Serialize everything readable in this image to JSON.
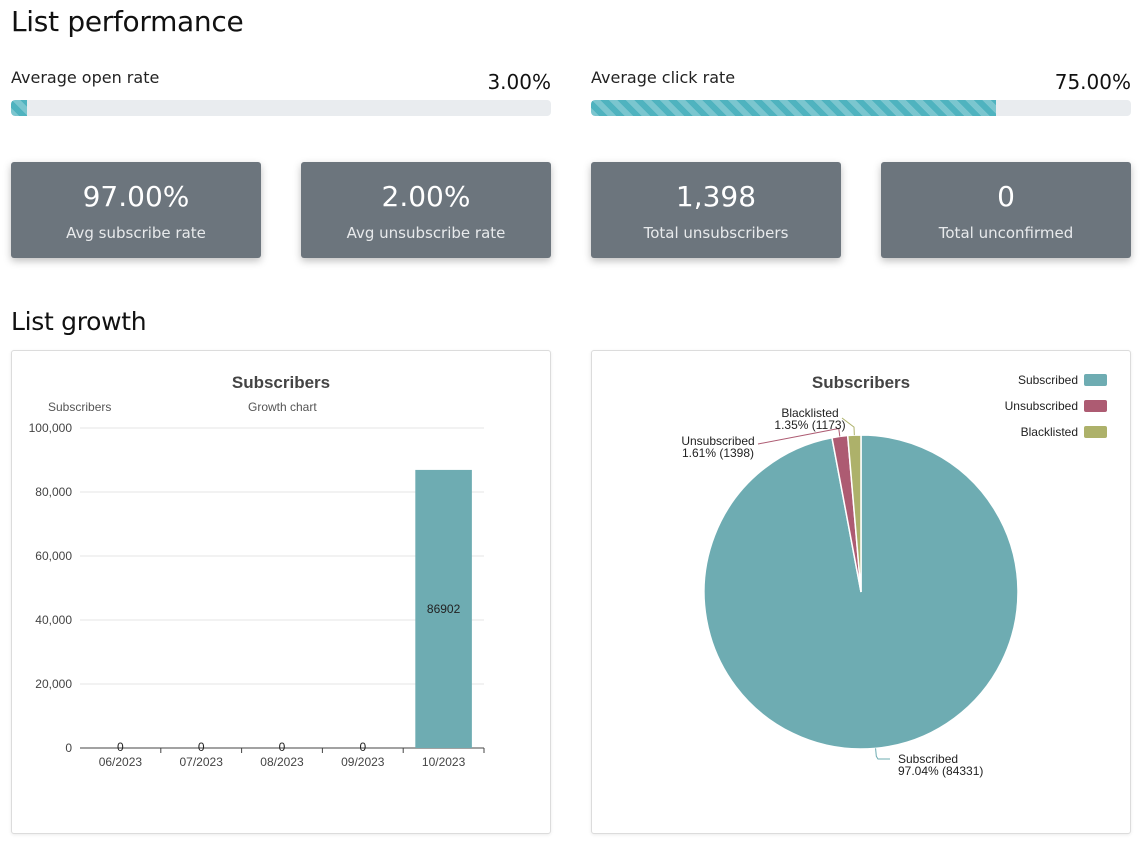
{
  "page": {
    "title": "List performance",
    "growth_title": "List growth"
  },
  "rates": {
    "open": {
      "label": "Average open rate",
      "value": "3.00%",
      "fraction": 0.03
    },
    "click": {
      "label": "Average click rate",
      "value": "75.00%",
      "fraction": 0.75
    }
  },
  "stats": [
    {
      "value": "97.00%",
      "label": "Avg subscribe rate"
    },
    {
      "value": "2.00%",
      "label": "Avg unsubscribe rate"
    },
    {
      "value": "1,398",
      "label": "Total unsubscribers"
    },
    {
      "value": "0",
      "label": "Total unconfirmed"
    }
  ],
  "colors": {
    "progress": "#4fb3bf",
    "card": "#6c757d",
    "bar": "#6eacb2",
    "subscribed": "#6eacb2",
    "unsubscribed": "#ad5b72",
    "blacklisted": "#adb16a"
  },
  "chart_data": [
    {
      "type": "bar",
      "title": "Subscribers",
      "subtitle_left": "Subscribers",
      "subtitle_right": "Growth chart",
      "categories": [
        "06/2023",
        "07/2023",
        "08/2023",
        "09/2023",
        "10/2023"
      ],
      "values": [
        0,
        0,
        0,
        0,
        86902
      ],
      "data_labels": [
        "0",
        "0",
        "0",
        "0",
        "86902"
      ],
      "ylim": [
        0,
        100000
      ],
      "yticks": [
        0,
        20000,
        40000,
        60000,
        80000,
        100000
      ],
      "ytick_labels": [
        "0",
        "20,000",
        "40,000",
        "60,000",
        "80,000",
        "100,000"
      ],
      "grid": true
    },
    {
      "type": "pie",
      "title": "Subscribers",
      "legend_position": "top-right",
      "slices": [
        {
          "name": "Subscribed",
          "value": 84331,
          "percent": "97.04%",
          "label_line1": "Subscribed",
          "label_line2": "97.04% (84331)"
        },
        {
          "name": "Unsubscribed",
          "value": 1398,
          "percent": "1.61%",
          "label_line1": "Unsubscribed",
          "label_line2": "1.61% (1398)"
        },
        {
          "name": "Blacklisted",
          "value": 1173,
          "percent": "1.35%",
          "label_line1": "Blacklisted",
          "label_line2": "1.35% (1173)"
        }
      ]
    }
  ]
}
